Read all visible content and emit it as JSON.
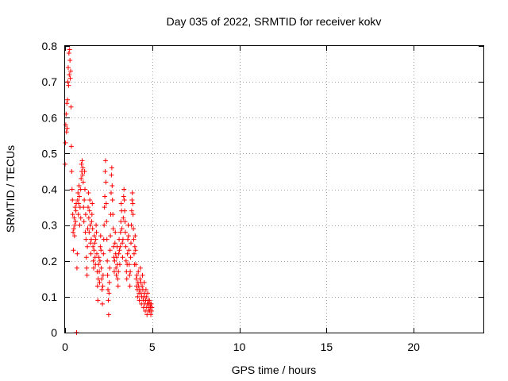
{
  "chart_data": {
    "type": "scatter",
    "title": "Day 035 of 2022, SRMTID for receiver kokv",
    "xlabel": "GPS time / hours",
    "ylabel": "SRMTID / TECUs",
    "xlim": [
      0,
      24
    ],
    "ylim": [
      0,
      0.8
    ],
    "xticks": [
      0,
      5,
      10,
      15,
      20
    ],
    "xtick_labels": [
      "0",
      "5",
      "10",
      "15",
      "20"
    ],
    "yticks": [
      0,
      0.1,
      0.2,
      0.3,
      0.4,
      0.5,
      0.6,
      0.7,
      0.8
    ],
    "ytick_labels": [
      "0",
      "0.1",
      "0.2",
      "0.3",
      "0.4",
      "0.5",
      "0.6",
      "0.7",
      "0.8"
    ],
    "grid": true,
    "marker": "+",
    "color": "#ff0000",
    "series": [
      {
        "name": "SRMTID",
        "points": [
          [
            0.0,
            0.47
          ],
          [
            0.02,
            0.53
          ],
          [
            0.04,
            0.58
          ],
          [
            0.06,
            0.61
          ],
          [
            0.08,
            0.56
          ],
          [
            0.1,
            0.64
          ],
          [
            0.12,
            0.57
          ],
          [
            0.14,
            0.65
          ],
          [
            0.16,
            0.7
          ],
          [
            0.18,
            0.74
          ],
          [
            0.2,
            0.69
          ],
          [
            0.22,
            0.78
          ],
          [
            0.24,
            0.72
          ],
          [
            0.26,
            0.79
          ],
          [
            0.28,
            0.76
          ],
          [
            0.3,
            0.71
          ],
          [
            0.32,
            0.73
          ],
          [
            0.34,
            0.63
          ],
          [
            0.36,
            0.52
          ],
          [
            0.38,
            0.45
          ],
          [
            0.4,
            0.4
          ],
          [
            0.42,
            0.37
          ],
          [
            0.44,
            0.33
          ],
          [
            0.46,
            0.28
          ],
          [
            0.48,
            0.23
          ],
          [
            0.5,
            0.29
          ],
          [
            0.52,
            0.32
          ],
          [
            0.54,
            0.27
          ],
          [
            0.56,
            0.3
          ],
          [
            0.58,
            0.35
          ],
          [
            0.6,
            0.31
          ],
          [
            0.62,
            0.34
          ],
          [
            0.64,
            0.36
          ],
          [
            0.66,
            0.0
          ],
          [
            0.68,
            0.18
          ],
          [
            0.7,
            0.22
          ],
          [
            0.72,
            0.37
          ],
          [
            0.74,
            0.39
          ],
          [
            0.76,
            0.33
          ],
          [
            0.78,
            0.36
          ],
          [
            0.8,
            0.41
          ],
          [
            0.82,
            0.38
          ],
          [
            0.84,
            0.3
          ],
          [
            0.86,
            0.35
          ],
          [
            0.88,
            0.4
          ],
          [
            0.9,
            0.32
          ],
          [
            0.92,
            0.43
          ],
          [
            0.94,
            0.47
          ],
          [
            0.96,
            0.45
          ],
          [
            0.98,
            0.48
          ],
          [
            1.0,
            0.44
          ],
          [
            1.02,
            0.46
          ],
          [
            1.04,
            0.42
          ],
          [
            1.06,
            0.35
          ],
          [
            1.08,
            0.31
          ],
          [
            1.1,
            0.37
          ],
          [
            1.12,
            0.45
          ],
          [
            1.14,
            0.4
          ],
          [
            1.16,
            0.28
          ],
          [
            1.18,
            0.33
          ],
          [
            1.2,
            0.26
          ],
          [
            1.22,
            0.21
          ],
          [
            1.24,
            0.18
          ],
          [
            1.26,
            0.16
          ],
          [
            1.28,
            0.24
          ],
          [
            1.3,
            0.29
          ],
          [
            1.32,
            0.35
          ],
          [
            1.34,
            0.39
          ],
          [
            1.36,
            0.32
          ],
          [
            1.38,
            0.28
          ],
          [
            1.4,
            0.34
          ],
          [
            1.42,
            0.37
          ],
          [
            1.44,
            0.3
          ],
          [
            1.46,
            0.25
          ],
          [
            1.48,
            0.22
          ],
          [
            1.5,
            0.26
          ],
          [
            1.52,
            0.31
          ],
          [
            1.54,
            0.33
          ],
          [
            1.56,
            0.36
          ],
          [
            1.58,
            0.29
          ],
          [
            1.6,
            0.24
          ],
          [
            1.62,
            0.2
          ],
          [
            1.64,
            0.18
          ],
          [
            1.66,
            0.23
          ],
          [
            1.68,
            0.27
          ],
          [
            1.7,
            0.25
          ],
          [
            1.72,
            0.21
          ],
          [
            1.74,
            0.19
          ],
          [
            1.76,
            0.26
          ],
          [
            1.78,
            0.3
          ],
          [
            1.8,
            0.28
          ],
          [
            1.82,
            0.22
          ],
          [
            1.84,
            0.17
          ],
          [
            1.86,
            0.13
          ],
          [
            1.88,
            0.09
          ],
          [
            1.9,
            0.15
          ],
          [
            1.92,
            0.19
          ],
          [
            1.94,
            0.21
          ],
          [
            1.96,
            0.17
          ],
          [
            1.98,
            0.14
          ],
          [
            2.0,
            0.2
          ],
          [
            2.02,
            0.24
          ],
          [
            2.04,
            0.27
          ],
          [
            2.06,
            0.23
          ],
          [
            2.08,
            0.18
          ],
          [
            2.1,
            0.15
          ],
          [
            2.12,
            0.12
          ],
          [
            2.14,
            0.08
          ],
          [
            2.16,
            0.13
          ],
          [
            2.18,
            0.16
          ],
          [
            2.2,
            0.22
          ],
          [
            2.22,
            0.26
          ],
          [
            2.24,
            0.3
          ],
          [
            2.26,
            0.35
          ],
          [
            2.28,
            0.38
          ],
          [
            2.3,
            0.45
          ],
          [
            2.32,
            0.48
          ],
          [
            2.34,
            0.42
          ],
          [
            2.36,
            0.36
          ],
          [
            2.38,
            0.31
          ],
          [
            2.4,
            0.26
          ],
          [
            2.42,
            0.2
          ],
          [
            2.44,
            0.16
          ],
          [
            2.46,
            0.12
          ],
          [
            2.48,
            0.09
          ],
          [
            2.5,
            0.05
          ],
          [
            2.52,
            0.11
          ],
          [
            2.54,
            0.14
          ],
          [
            2.56,
            0.18
          ],
          [
            2.58,
            0.23
          ],
          [
            2.6,
            0.27
          ],
          [
            2.62,
            0.33
          ],
          [
            2.64,
            0.39
          ],
          [
            2.66,
            0.44
          ],
          [
            2.68,
            0.46
          ],
          [
            2.7,
            0.41
          ],
          [
            2.72,
            0.37
          ],
          [
            2.74,
            0.33
          ],
          [
            2.76,
            0.29
          ],
          [
            2.78,
            0.24
          ],
          [
            2.8,
            0.21
          ],
          [
            2.82,
            0.17
          ],
          [
            2.84,
            0.2
          ],
          [
            2.86,
            0.25
          ],
          [
            2.88,
            0.28
          ],
          [
            2.9,
            0.22
          ],
          [
            2.92,
            0.18
          ],
          [
            2.94,
            0.16
          ],
          [
            2.96,
            0.21
          ],
          [
            2.98,
            0.24
          ],
          [
            3.0,
            0.19
          ],
          [
            3.02,
            0.15
          ],
          [
            3.04,
            0.13
          ],
          [
            3.06,
            0.17
          ],
          [
            3.08,
            0.22
          ],
          [
            3.1,
            0.26
          ],
          [
            3.12,
            0.23
          ],
          [
            3.14,
            0.19
          ],
          [
            3.16,
            0.24
          ],
          [
            3.18,
            0.28
          ],
          [
            3.2,
            0.31
          ],
          [
            3.22,
            0.36
          ],
          [
            3.24,
            0.34
          ],
          [
            3.26,
            0.29
          ],
          [
            3.28,
            0.25
          ],
          [
            3.3,
            0.21
          ],
          [
            3.32,
            0.26
          ],
          [
            3.34,
            0.32
          ],
          [
            3.36,
            0.38
          ],
          [
            3.38,
            0.4
          ],
          [
            3.4,
            0.37
          ],
          [
            3.42,
            0.34
          ],
          [
            3.44,
            0.31
          ],
          [
            3.46,
            0.28
          ],
          [
            3.48,
            0.24
          ],
          [
            3.5,
            0.2
          ],
          [
            3.52,
            0.17
          ],
          [
            3.54,
            0.15
          ],
          [
            3.56,
            0.19
          ],
          [
            3.58,
            0.22
          ],
          [
            3.6,
            0.26
          ],
          [
            3.62,
            0.3
          ],
          [
            3.64,
            0.27
          ],
          [
            3.66,
            0.23
          ],
          [
            3.68,
            0.19
          ],
          [
            3.7,
            0.16
          ],
          [
            3.72,
            0.13
          ],
          [
            3.74,
            0.17
          ],
          [
            3.76,
            0.21
          ],
          [
            3.78,
            0.25
          ],
          [
            3.8,
            0.3
          ],
          [
            3.82,
            0.34
          ],
          [
            3.84,
            0.37
          ],
          [
            3.86,
            0.39
          ],
          [
            3.88,
            0.36
          ],
          [
            3.9,
            0.33
          ],
          [
            3.92,
            0.29
          ],
          [
            3.94,
            0.26
          ],
          [
            3.96,
            0.22
          ],
          [
            3.98,
            0.19
          ],
          [
            4.0,
            0.24
          ],
          [
            4.02,
            0.27
          ],
          [
            4.04,
            0.23
          ],
          [
            4.06,
            0.19
          ],
          [
            4.08,
            0.15
          ],
          [
            4.1,
            0.13
          ],
          [
            4.12,
            0.16
          ],
          [
            4.14,
            0.12
          ],
          [
            4.16,
            0.1
          ],
          [
            4.18,
            0.14
          ],
          [
            4.2,
            0.17
          ],
          [
            4.22,
            0.13
          ],
          [
            4.24,
            0.11
          ],
          [
            4.26,
            0.09
          ],
          [
            4.28,
            0.12
          ],
          [
            4.3,
            0.15
          ],
          [
            4.32,
            0.18
          ],
          [
            4.34,
            0.14
          ],
          [
            4.36,
            0.11
          ],
          [
            4.38,
            0.08
          ],
          [
            4.4,
            0.1
          ],
          [
            4.42,
            0.13
          ],
          [
            4.44,
            0.16
          ],
          [
            4.46,
            0.12
          ],
          [
            4.48,
            0.09
          ],
          [
            4.5,
            0.07
          ],
          [
            4.52,
            0.1
          ],
          [
            4.54,
            0.14
          ],
          [
            4.56,
            0.11
          ],
          [
            4.58,
            0.08
          ],
          [
            4.6,
            0.06
          ],
          [
            4.62,
            0.09
          ],
          [
            4.64,
            0.12
          ],
          [
            4.66,
            0.1
          ],
          [
            4.68,
            0.07
          ],
          [
            4.7,
            0.05
          ],
          [
            4.72,
            0.08
          ],
          [
            4.74,
            0.11
          ],
          [
            4.76,
            0.09
          ],
          [
            4.78,
            0.06
          ],
          [
            4.8,
            0.08
          ],
          [
            4.82,
            0.07
          ],
          [
            4.84,
            0.09
          ],
          [
            4.86,
            0.06
          ],
          [
            4.88,
            0.08
          ],
          [
            4.9,
            0.07
          ],
          [
            4.92,
            0.05
          ],
          [
            4.94,
            0.08
          ],
          [
            4.96,
            0.06
          ],
          [
            4.98,
            0.07
          ]
        ]
      }
    ]
  }
}
